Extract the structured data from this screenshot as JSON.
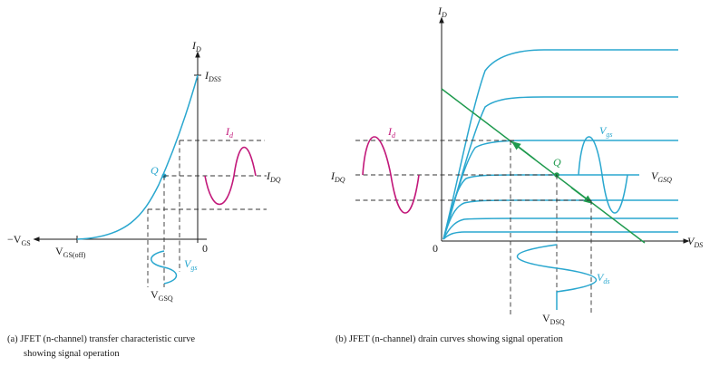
{
  "colors": {
    "curve": "#2aa7cf",
    "id_signal": "#c2187a",
    "load_line": "#1f9a4e",
    "axis": "#1a1a1a"
  },
  "left_panel": {
    "y_axis_label": "I",
    "y_axis_sub": "D",
    "idss_label": "I",
    "idss_sub": "DSS",
    "neg_vgs_label": "−V",
    "neg_vgs_sub": "GS",
    "vgs_off_label": "V",
    "vgs_off_sub": "GS(off)",
    "zero_label": "0",
    "q_label": "Q",
    "id_label": "I",
    "id_sub": "d",
    "idq_label": "I",
    "idq_sub": "DQ",
    "vgs_label": "V",
    "vgs_sub": "gs",
    "vgsq_label": "V",
    "vgsq_sub": "GSQ",
    "caption_line1": "(a) JFET (n-channel) transfer characteristic curve",
    "caption_line2": "showing signal operation"
  },
  "right_panel": {
    "y_axis_label": "I",
    "y_axis_sub": "D",
    "x_axis_label": "V",
    "x_axis_sub": "DS",
    "zero_label": "0",
    "q_label": "Q",
    "id_label": "I",
    "id_sub": "d",
    "idq_label": "I",
    "idq_sub": "DQ",
    "vgs_label": "V",
    "vgs_sub": "gs",
    "vgsq_label": "V",
    "vgsq_sub": "GSQ",
    "vds_label": "V",
    "vds_sub": "ds",
    "vdsq_label": "V",
    "vdsq_sub": "DSQ",
    "caption": "(b) JFET (n-channel) drain curves showing signal operation"
  }
}
